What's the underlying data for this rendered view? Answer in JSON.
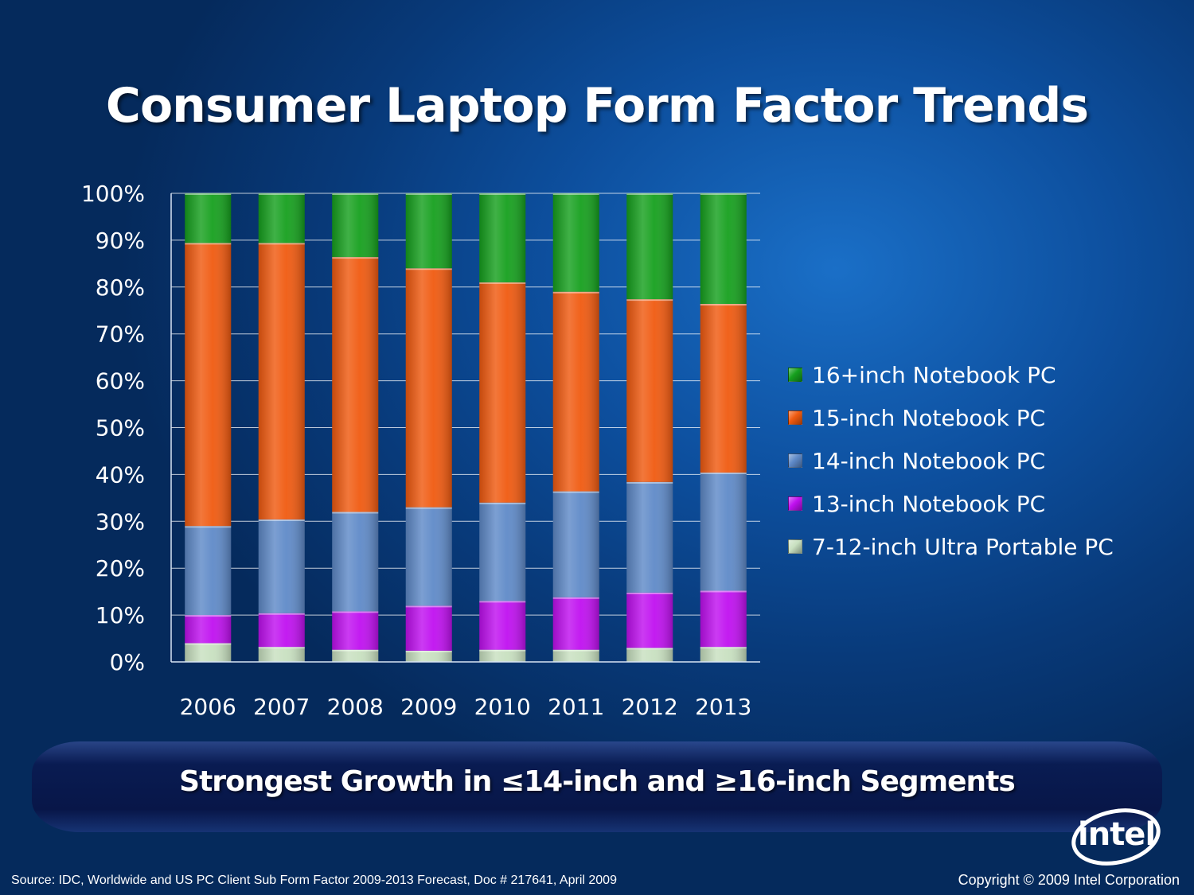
{
  "title": "Consumer Laptop Form Factor Trends",
  "banner": "Strongest Growth in ≤14-inch and ≥16-inch  Segments",
  "source": "Source: IDC, Worldwide and US PC Client Sub Form Factor 2009-2013 Forecast, Doc # 217641, April 2009",
  "copyright": "Copyright © 2009 Intel Corporation",
  "logo": "intel",
  "chart_data": {
    "type": "bar",
    "stacked": true,
    "categories": [
      "2006",
      "2007",
      "2008",
      "2009",
      "2010",
      "2011",
      "2012",
      "2013"
    ],
    "y_ticks": [
      "0%",
      "10%",
      "20%",
      "30%",
      "40%",
      "50%",
      "60%",
      "70%",
      "80%",
      "90%",
      "100%"
    ],
    "ylim": [
      0,
      100
    ],
    "grid": true,
    "legend_position": "right",
    "series": [
      {
        "name": "7-12-inch Ultra Portable PC",
        "color": "#c8e0c0",
        "values": [
          4,
          3.2,
          2.6,
          2.4,
          2.6,
          2.6,
          3,
          3.2
        ]
      },
      {
        "name": "13-inch Notebook PC",
        "color": "#c010f0",
        "values": [
          6,
          7.2,
          8.2,
          9.6,
          10.4,
          11.2,
          11.8,
          12
        ]
      },
      {
        "name": "14-inch Notebook PC",
        "color": "#5f8ac8",
        "values": [
          19,
          20,
          21.2,
          21,
          21,
          22.6,
          23.6,
          25.2
        ]
      },
      {
        "name": "15-inch Notebook PC",
        "color": "#f05a10",
        "values": [
          60.4,
          59,
          54.4,
          51,
          47,
          42.6,
          39,
          36
        ]
      },
      {
        "name": "16+inch Notebook PC",
        "color": "#16a01e",
        "values": [
          10.6,
          10.6,
          13.6,
          16,
          19,
          21,
          22.6,
          23.6
        ]
      }
    ]
  }
}
